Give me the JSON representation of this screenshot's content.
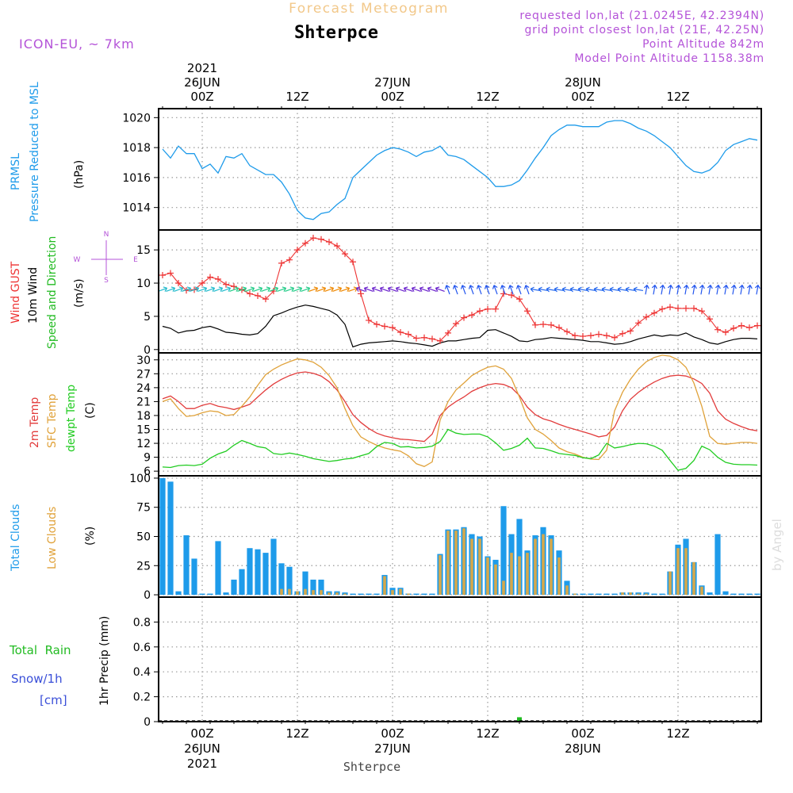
{
  "header": {
    "title_top": "Forecast Meteogram",
    "station": "Shterpce",
    "model": "ICON-EU, ~ 7km",
    "info": [
      "requested lon,lat (21.0245E, 42.2394N)",
      "grid point closest lon,lat (21E, 42.25N)",
      "Point Altitude 842m",
      "Model Point Altitude 1158.38m"
    ],
    "credit": "by Angel",
    "bottom_station": "Shterpce"
  },
  "time_axis": {
    "top_labels": [
      {
        "hour": 0,
        "lines": [
          "2021",
          "26JUN",
          "00Z"
        ]
      },
      {
        "hour": 12,
        "lines": [
          "12Z"
        ]
      },
      {
        "hour": 24,
        "lines": [
          "27JUN",
          "00Z"
        ]
      },
      {
        "hour": 36,
        "lines": [
          "12Z"
        ]
      },
      {
        "hour": 48,
        "lines": [
          "28JUN",
          "00Z"
        ]
      },
      {
        "hour": 60,
        "lines": [
          "12Z"
        ]
      }
    ],
    "bottom_labels": [
      {
        "hour": 0,
        "lines": [
          "00Z",
          "26JUN",
          "2021"
        ]
      },
      {
        "hour": 12,
        "lines": [
          "12Z"
        ]
      },
      {
        "hour": 24,
        "lines": [
          "00Z",
          "27JUN"
        ]
      },
      {
        "hour": 36,
        "lines": [
          "12Z"
        ]
      },
      {
        "hour": 48,
        "lines": [
          "00Z",
          "28JUN"
        ]
      },
      {
        "hour": 60,
        "lines": [
          "12Z"
        ]
      }
    ],
    "x_range_hours": [
      -5.5,
      70.5
    ]
  },
  "colors": {
    "pressure": "#1e9bea",
    "gust": "#ee3333",
    "wind": "#000000",
    "direction": "#22bb22",
    "temp": "#e23c3c",
    "sfc_temp": "#e0a23a",
    "dewpt": "#22cc22",
    "total_clouds": "#1e9bea",
    "low_clouds": "#d6a84a",
    "rain": "#22bb22",
    "snow": "#3a4fd8",
    "purple": "#b453d8"
  },
  "panel_labels": {
    "pressure": {
      "name": "PRMSL",
      "desc": "Pressure Reduced to MSL",
      "unit": "(hPa)"
    },
    "wind": {
      "gust": "Wind GUST",
      "wind": "10m Wind",
      "dir": "Speed and Direction",
      "unit": "(m/s)",
      "compass_n": "N",
      "compass_s": "S",
      "compass_e": "E",
      "compass_w": "W"
    },
    "temp": {
      "t2m": "2m Temp",
      "sfc": "SFC Temp",
      "dew": "dewpt Temp",
      "unit": "(C)"
    },
    "clouds": {
      "total": "Total Clouds",
      "low": "Low Clouds",
      "unit": "(%)"
    },
    "precip": {
      "rain": "Total  Rain",
      "snow": "Snow/1h",
      "snow_unit": "[cm]",
      "ylabel": "1hr Precip (mm)"
    }
  },
  "chart_data": [
    {
      "type": "line",
      "name": "PRMSL",
      "x": [
        -5,
        -4,
        -3,
        -2,
        -1,
        0,
        1,
        2,
        3,
        4,
        5,
        6,
        7,
        8,
        9,
        10,
        11,
        12,
        13,
        14,
        15,
        16,
        17,
        18,
        19,
        20,
        21,
        22,
        23,
        24,
        25,
        26,
        27,
        28,
        29,
        30,
        31,
        32,
        33,
        34,
        35,
        36,
        37,
        38,
        39,
        40,
        41,
        42,
        43,
        44,
        45,
        46,
        47,
        48,
        49,
        50,
        51,
        52,
        53,
        54,
        55,
        56,
        57,
        58,
        59,
        60,
        61,
        62,
        63,
        64,
        65,
        66,
        67,
        68,
        69,
        70
      ],
      "values": [
        1017.9,
        1017.3,
        1018.1,
        1017.6,
        1017.6,
        1016.6,
        1016.9,
        1016.3,
        1017.4,
        1017.3,
        1017.6,
        1016.8,
        1016.5,
        1016.2,
        1016.2,
        1015.7,
        1014.9,
        1013.8,
        1013.3,
        1013.2,
        1013.6,
        1013.7,
        1014.2,
        1014.6,
        1016.0,
        1016.5,
        1017.0,
        1017.5,
        1017.8,
        1018.0,
        1017.9,
        1017.7,
        1017.4,
        1017.7,
        1017.8,
        1018.1,
        1017.5,
        1017.4,
        1017.2,
        1016.8,
        1016.4,
        1016.0,
        1015.4,
        1015.4,
        1015.5,
        1015.8,
        1016.5,
        1017.3,
        1018.0,
        1018.8,
        1019.2,
        1019.5,
        1019.5,
        1019.4,
        1019.4,
        1019.4,
        1019.7,
        1019.8,
        1019.8,
        1019.6,
        1019.3,
        1019.1,
        1018.8,
        1018.4,
        1018.0,
        1017.4,
        1016.8,
        1016.4,
        1016.3,
        1016.5,
        1017.0,
        1017.8,
        1018.2,
        1018.4,
        1018.6,
        1018.5
      ],
      "ylim": [
        1012.5,
        1020.6
      ],
      "ticks": [
        1014,
        1016,
        1018,
        1020
      ]
    },
    {
      "type": "line",
      "name": "Wind GUST / 10m Wind",
      "x": [
        -5,
        -4,
        -3,
        -2,
        -1,
        0,
        1,
        2,
        3,
        4,
        5,
        6,
        7,
        8,
        9,
        10,
        11,
        12,
        13,
        14,
        15,
        16,
        17,
        18,
        19,
        20,
        21,
        22,
        23,
        24,
        25,
        26,
        27,
        28,
        29,
        30,
        31,
        32,
        33,
        34,
        35,
        36,
        37,
        38,
        39,
        40,
        41,
        42,
        43,
        44,
        45,
        46,
        47,
        48,
        49,
        50,
        51,
        52,
        53,
        54,
        55,
        56,
        57,
        58,
        59,
        60,
        61,
        62,
        63,
        64,
        65,
        66,
        67,
        68,
        69,
        70
      ],
      "series": [
        {
          "name": "Wind GUST",
          "values": [
            11.2,
            11.5,
            10.0,
            8.9,
            9.0,
            10.0,
            10.9,
            10.6,
            9.8,
            9.5,
            9.0,
            8.4,
            8.1,
            7.6,
            8.8,
            13.0,
            13.5,
            15.0,
            16.0,
            16.8,
            16.6,
            16.2,
            15.6,
            14.4,
            13.2,
            8.4,
            4.4,
            3.8,
            3.5,
            3.3,
            2.6,
            2.3,
            1.7,
            1.8,
            1.6,
            1.3,
            2.5,
            3.9,
            4.8,
            5.2,
            5.8,
            6.1,
            6.1,
            8.4,
            8.2,
            7.6,
            5.8,
            3.7,
            3.8,
            3.7,
            3.3,
            2.7,
            2.1,
            2.0,
            2.1,
            2.3,
            2.1,
            1.8,
            2.4,
            2.8,
            4.0,
            4.9,
            5.5,
            6.1,
            6.4,
            6.2,
            6.2,
            6.2,
            5.8,
            4.6,
            3.0,
            2.6,
            3.2,
            3.6,
            3.3,
            3.6
          ]
        },
        {
          "name": "10m Wind",
          "values": [
            3.5,
            3.2,
            2.5,
            2.8,
            2.9,
            3.3,
            3.5,
            3.1,
            2.6,
            2.5,
            2.3,
            2.2,
            2.4,
            3.5,
            5.1,
            5.5,
            6.0,
            6.4,
            6.7,
            6.5,
            6.2,
            5.9,
            5.2,
            3.8,
            0.4,
            0.8,
            1.0,
            1.1,
            1.2,
            1.3,
            1.2,
            1.0,
            0.9,
            0.7,
            0.5,
            1.0,
            1.3,
            1.3,
            1.5,
            1.7,
            1.8,
            2.9,
            3.0,
            2.5,
            2.0,
            1.3,
            1.2,
            1.5,
            1.6,
            1.8,
            1.7,
            1.6,
            1.5,
            1.4,
            1.2,
            1.2,
            1.0,
            0.8,
            0.9,
            1.2,
            1.6,
            1.9,
            2.2,
            2.0,
            2.2,
            2.1,
            2.5,
            1.9,
            1.5,
            1.0,
            0.8,
            1.2,
            1.5,
            1.7,
            1.7,
            1.6
          ]
        }
      ],
      "direction_arrows": [
        {
          "h0": -5,
          "h1": 3,
          "color": "#22bbcc"
        },
        {
          "h0": 4,
          "h1": 13,
          "color": "#22cc88"
        },
        {
          "h0": 14,
          "h1": 19,
          "color": "#ee8800"
        },
        {
          "h0": 20,
          "h1": 30,
          "color": "#6a22cc"
        },
        {
          "h0": 31,
          "h1": 41,
          "color": "#2255ee"
        },
        {
          "h0": 42,
          "h1": 55,
          "color": "#2266ee"
        },
        {
          "h0": 56,
          "h1": 70,
          "color": "#2255ee"
        }
      ],
      "ylim": [
        -0.5,
        18
      ],
      "ticks": [
        0,
        5,
        10,
        15
      ]
    },
    {
      "type": "line",
      "name": "Temperatures",
      "x": [
        -5,
        -4,
        -3,
        -2,
        -1,
        0,
        1,
        2,
        3,
        4,
        5,
        6,
        7,
        8,
        9,
        10,
        11,
        12,
        13,
        14,
        15,
        16,
        17,
        18,
        19,
        20,
        21,
        22,
        23,
        24,
        25,
        26,
        27,
        28,
        29,
        30,
        31,
        32,
        33,
        34,
        35,
        36,
        37,
        38,
        39,
        40,
        41,
        42,
        43,
        44,
        45,
        46,
        47,
        48,
        49,
        50,
        51,
        52,
        53,
        54,
        55,
        56,
        57,
        58,
        59,
        60,
        61,
        62,
        63,
        64,
        65,
        66,
        67,
        68,
        69,
        70
      ],
      "series": [
        {
          "name": "2m Temp",
          "values": [
            21.6,
            22.2,
            21.0,
            19.5,
            19.5,
            20.2,
            20.6,
            20.0,
            19.7,
            19.3,
            19.8,
            20.4,
            22.0,
            23.5,
            24.8,
            25.8,
            26.6,
            27.2,
            27.4,
            27.1,
            26.5,
            25.3,
            23.5,
            21.0,
            18.2,
            16.5,
            15.2,
            14.2,
            13.6,
            13.2,
            12.9,
            12.8,
            12.6,
            12.4,
            14.0,
            18.0,
            19.8,
            21.0,
            22.0,
            23.2,
            24.0,
            24.6,
            24.9,
            24.7,
            24.0,
            22.3,
            19.8,
            18.2,
            17.3,
            16.8,
            16.1,
            15.5,
            15.0,
            14.5,
            14.0,
            13.4,
            13.7,
            15.5,
            19.0,
            21.5,
            23.0,
            24.2,
            25.2,
            26.0,
            26.5,
            26.7,
            26.5,
            25.9,
            24.9,
            22.8,
            19.0,
            17.2,
            16.3,
            15.6,
            15.0,
            14.7
          ]
        },
        {
          "name": "SFC Temp",
          "values": [
            21.0,
            21.6,
            19.5,
            17.8,
            18.0,
            18.6,
            19.0,
            18.8,
            18.0,
            18.2,
            20.0,
            22.0,
            24.5,
            26.8,
            28.0,
            28.9,
            29.6,
            30.2,
            30.0,
            29.5,
            28.4,
            26.6,
            24.0,
            19.5,
            15.8,
            13.4,
            12.4,
            11.6,
            11.0,
            10.6,
            10.3,
            9.3,
            7.6,
            7.0,
            8.0,
            17.0,
            21.0,
            23.5,
            25.0,
            26.6,
            27.6,
            28.4,
            28.7,
            28.0,
            26.0,
            22.0,
            17.5,
            15.0,
            14.0,
            12.6,
            11.0,
            10.2,
            9.7,
            9.0,
            8.6,
            8.5,
            10.5,
            19.0,
            23.0,
            25.8,
            28.0,
            29.6,
            30.5,
            31.0,
            30.8,
            30.0,
            28.4,
            25.0,
            20.0,
            13.5,
            12.0,
            11.8,
            12.0,
            12.2,
            12.2,
            12.0
          ]
        },
        {
          "name": "dewpt Temp",
          "values": [
            6.9,
            6.8,
            7.2,
            7.3,
            7.2,
            7.5,
            8.8,
            9.7,
            10.3,
            11.6,
            12.6,
            12.0,
            11.3,
            11.0,
            9.8,
            9.6,
            9.9,
            9.6,
            9.2,
            8.7,
            8.4,
            8.1,
            8.3,
            8.6,
            8.8,
            9.3,
            9.8,
            11.3,
            12.2,
            12.0,
            11.2,
            11.3,
            11.0,
            11.1,
            11.4,
            12.4,
            15.0,
            14.2,
            13.9,
            14.0,
            14.0,
            13.4,
            12.1,
            10.5,
            10.9,
            11.6,
            13.1,
            11.0,
            10.9,
            10.4,
            9.8,
            9.6,
            9.4,
            8.9,
            8.7,
            9.5,
            12.0,
            11.0,
            11.3,
            11.7,
            12.0,
            11.9,
            11.4,
            10.5,
            8.3,
            6.2,
            6.6,
            8.3,
            11.4,
            10.6,
            9.0,
            7.9,
            7.5,
            7.4,
            7.4,
            7.3
          ]
        }
      ],
      "ylim": [
        5,
        31.5
      ],
      "ticks": [
        6,
        9,
        12,
        15,
        18,
        21,
        24,
        27,
        30
      ]
    },
    {
      "type": "bar",
      "name": "Clouds",
      "x": [
        -5,
        -4,
        -3,
        -2,
        -1,
        0,
        1,
        2,
        3,
        4,
        5,
        6,
        7,
        8,
        9,
        10,
        11,
        12,
        13,
        14,
        15,
        16,
        17,
        18,
        19,
        20,
        21,
        22,
        23,
        24,
        25,
        26,
        27,
        28,
        29,
        30,
        31,
        32,
        33,
        34,
        35,
        36,
        37,
        38,
        39,
        40,
        41,
        42,
        43,
        44,
        45,
        46,
        47,
        48,
        49,
        50,
        51,
        52,
        53,
        54,
        55,
        56,
        57,
        58,
        59,
        60,
        61,
        62,
        63,
        64,
        65,
        66,
        67,
        68,
        69,
        70
      ],
      "series": [
        {
          "name": "Total Clouds",
          "values": [
            100,
            97,
            3,
            51,
            31,
            1,
            1,
            46,
            2,
            13,
            22,
            40,
            39,
            36,
            48,
            27,
            24,
            3,
            20,
            13,
            13,
            3,
            3,
            2,
            1,
            1,
            1,
            1,
            17,
            6,
            6,
            1,
            1,
            1,
            1,
            35,
            56,
            56,
            58,
            52,
            50,
            33,
            30,
            76,
            52,
            65,
            38,
            51,
            58,
            51,
            38,
            12,
            1,
            1,
            1,
            1,
            1,
            1,
            2,
            2,
            2,
            2,
            1,
            1,
            20,
            43,
            48,
            28,
            8,
            2,
            52,
            3,
            1,
            1,
            1,
            1
          ]
        },
        {
          "name": "Low Clouds",
          "values": [
            0,
            0,
            0,
            0,
            0,
            0,
            0,
            0,
            0,
            0,
            0,
            0,
            0,
            0,
            0,
            5,
            5,
            3,
            5,
            4,
            4,
            2,
            2,
            1,
            0,
            0,
            0,
            0,
            16,
            4,
            5,
            1,
            0,
            0,
            0,
            34,
            55,
            55,
            57,
            48,
            48,
            32,
            26,
            12,
            36,
            33,
            36,
            48,
            52,
            48,
            32,
            8,
            1,
            0,
            0,
            0,
            0,
            0,
            2,
            2,
            1,
            1,
            0,
            0,
            20,
            40,
            40,
            28,
            7,
            0,
            0,
            0,
            0,
            0,
            0,
            0
          ]
        }
      ],
      "ylim": [
        -2,
        102
      ],
      "ticks": [
        0,
        25,
        50,
        75,
        100
      ]
    },
    {
      "type": "bar",
      "name": "1hr Precip",
      "x": [
        40
      ],
      "series": [
        {
          "name": "Total Rain",
          "values": [
            0.01
          ]
        }
      ],
      "ylim": [
        0,
        1.0
      ],
      "ticks": [
        0,
        0.2,
        0.4,
        0.6,
        0.8
      ]
    }
  ]
}
